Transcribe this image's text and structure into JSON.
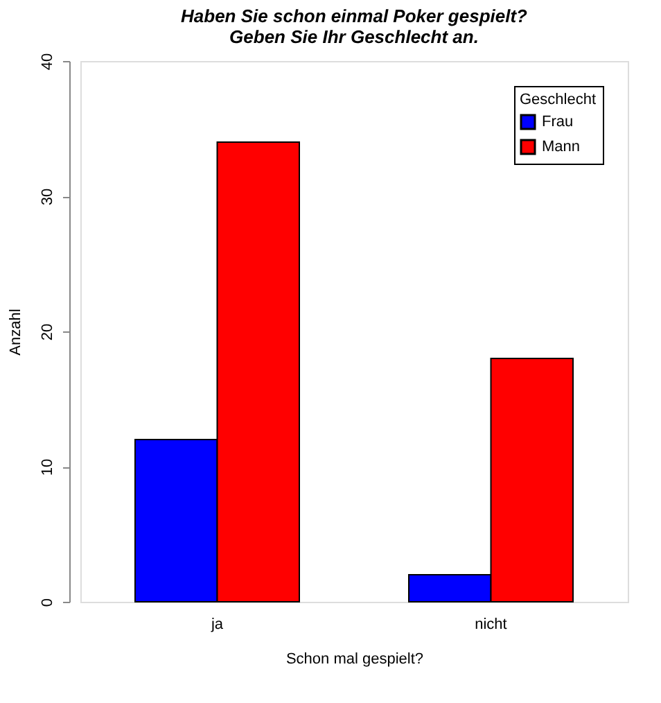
{
  "chart_data": {
    "type": "bar",
    "title": [
      "Haben Sie schon einmal Poker gespielt?",
      "Geben Sie Ihr Geschlecht an."
    ],
    "xlabel": "Schon mal gespielt?",
    "ylabel": "Anzahl",
    "legend_title": "Geschlecht",
    "categories": [
      "ja",
      "nicht"
    ],
    "series": [
      {
        "name": "Frau",
        "color": "#0000ff",
        "values": [
          12,
          2
        ]
      },
      {
        "name": "Mann",
        "color": "#ff0000",
        "values": [
          34,
          18
        ]
      }
    ],
    "ylim": [
      0,
      40
    ],
    "yticks": [
      0,
      10,
      20,
      30,
      40
    ],
    "grid": false,
    "legend": "top right"
  }
}
